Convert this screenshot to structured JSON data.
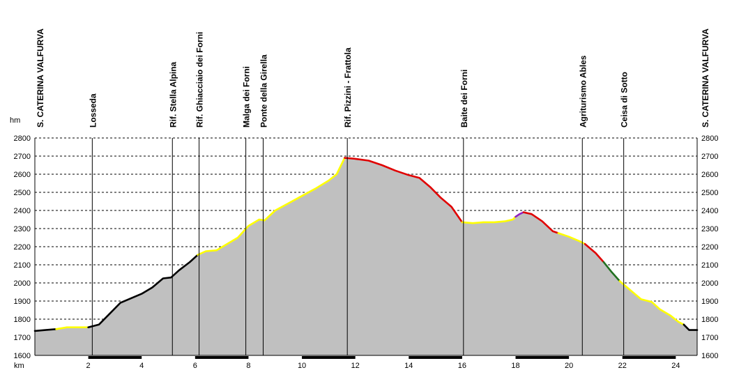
{
  "chart_data": {
    "type": "area",
    "xlabel": "km",
    "ylabel": "hm",
    "xlim": [
      0,
      24.8
    ],
    "ylim": [
      1600,
      2800
    ],
    "x_ticks": [
      2,
      4,
      6,
      8,
      10,
      12,
      14,
      16,
      18,
      20,
      22,
      24
    ],
    "y_ticks": [
      1600,
      1700,
      1800,
      1900,
      2000,
      2100,
      2200,
      2300,
      2400,
      2500,
      2600,
      2700,
      2800
    ],
    "grid": "horizontal-dashed",
    "colors": {
      "fill": "#c0c0c0",
      "black": "#000000",
      "yellow": "#ffff00",
      "red": "#e00000",
      "purple": "#9020c0",
      "green": "#207020"
    },
    "waypoints": [
      {
        "km": 0.0,
        "name": "S. CATERINA VALFURVA"
      },
      {
        "km": 2.15,
        "name": "Losseda"
      },
      {
        "km": 5.15,
        "name": "Rif. Stella Alpina"
      },
      {
        "km": 6.15,
        "name": "Rif. Ghiacciaio dei Forni"
      },
      {
        "km": 7.9,
        "name": "Malga dei Forni"
      },
      {
        "km": 8.55,
        "name": "Ponte della Girella"
      },
      {
        "km": 11.7,
        "name": "Rif. Pizzini - Frattola"
      },
      {
        "km": 16.05,
        "name": "Baite dei Forni"
      },
      {
        "km": 20.5,
        "name": "Agriturismo Ables"
      },
      {
        "km": 22.05,
        "name": "Ceisa di Sotto"
      },
      {
        "km": 24.8,
        "name": "S. CATERINA VALFURVA"
      }
    ],
    "series": [
      {
        "color": "black",
        "points": [
          [
            0,
            1735
          ],
          [
            0.4,
            1740
          ],
          [
            0.8,
            1745
          ]
        ]
      },
      {
        "color": "yellow",
        "points": [
          [
            0.8,
            1745
          ],
          [
            1.2,
            1755
          ],
          [
            1.6,
            1755
          ],
          [
            2.0,
            1755
          ]
        ]
      },
      {
        "color": "black",
        "points": [
          [
            2.0,
            1755
          ],
          [
            2.4,
            1770
          ],
          [
            2.8,
            1830
          ],
          [
            3.2,
            1890
          ],
          [
            3.6,
            1915
          ],
          [
            4.0,
            1940
          ],
          [
            4.4,
            1975
          ],
          [
            4.8,
            2025
          ],
          [
            5.1,
            2030
          ],
          [
            5.4,
            2070
          ],
          [
            5.8,
            2115
          ],
          [
            6.1,
            2155
          ]
        ]
      },
      {
        "color": "yellow",
        "points": [
          [
            6.1,
            2155
          ],
          [
            6.4,
            2175
          ],
          [
            6.8,
            2180
          ],
          [
            7.2,
            2215
          ],
          [
            7.6,
            2250
          ],
          [
            8.0,
            2315
          ],
          [
            8.4,
            2350
          ],
          [
            8.6,
            2345
          ],
          [
            9.0,
            2400
          ],
          [
            9.5,
            2440
          ],
          [
            10.0,
            2480
          ],
          [
            10.5,
            2520
          ],
          [
            11.0,
            2565
          ],
          [
            11.3,
            2600
          ],
          [
            11.6,
            2690
          ]
        ]
      },
      {
        "color": "red",
        "points": [
          [
            11.6,
            2690
          ],
          [
            12.0,
            2685
          ],
          [
            12.5,
            2675
          ],
          [
            13.0,
            2650
          ],
          [
            13.5,
            2620
          ],
          [
            14.0,
            2595
          ],
          [
            14.4,
            2580
          ],
          [
            14.8,
            2530
          ],
          [
            15.2,
            2470
          ],
          [
            15.6,
            2420
          ],
          [
            16.0,
            2335
          ]
        ]
      },
      {
        "color": "yellow",
        "points": [
          [
            16.0,
            2335
          ],
          [
            16.4,
            2330
          ],
          [
            16.8,
            2335
          ],
          [
            17.2,
            2335
          ],
          [
            17.6,
            2340
          ],
          [
            17.9,
            2350
          ],
          [
            18.0,
            2365
          ]
        ]
      },
      {
        "color": "purple",
        "points": [
          [
            18.0,
            2365
          ],
          [
            18.15,
            2380
          ],
          [
            18.3,
            2390
          ]
        ]
      },
      {
        "color": "red",
        "points": [
          [
            18.3,
            2390
          ],
          [
            18.6,
            2380
          ],
          [
            19.0,
            2340
          ],
          [
            19.4,
            2285
          ],
          [
            19.6,
            2275
          ]
        ]
      },
      {
        "color": "yellow",
        "points": [
          [
            19.6,
            2275
          ],
          [
            20.0,
            2255
          ],
          [
            20.4,
            2230
          ],
          [
            20.6,
            2215
          ]
        ]
      },
      {
        "color": "red",
        "points": [
          [
            20.6,
            2215
          ],
          [
            21.0,
            2165
          ],
          [
            21.3,
            2115
          ]
        ]
      },
      {
        "color": "green",
        "points": [
          [
            21.3,
            2115
          ],
          [
            21.6,
            2060
          ],
          [
            21.9,
            2010
          ]
        ]
      },
      {
        "color": "yellow",
        "points": [
          [
            21.9,
            2010
          ],
          [
            22.3,
            1960
          ],
          [
            22.7,
            1910
          ],
          [
            23.1,
            1895
          ],
          [
            23.4,
            1855
          ],
          [
            23.8,
            1820
          ],
          [
            24.1,
            1785
          ],
          [
            24.3,
            1770
          ]
        ]
      },
      {
        "color": "black",
        "points": [
          [
            24.3,
            1770
          ],
          [
            24.5,
            1740
          ],
          [
            24.8,
            1740
          ]
        ]
      }
    ]
  }
}
